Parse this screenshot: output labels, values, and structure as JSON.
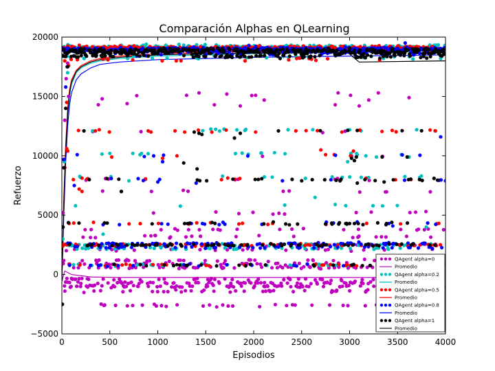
{
  "chart_data": {
    "type": "scatter",
    "title": "Comparación Alphas en QLearning",
    "xlabel": "Episodios",
    "ylabel": "Refuerzo",
    "xlim": [
      0,
      4000
    ],
    "ylim": [
      -5000,
      20000
    ],
    "x_ticks": [
      "0",
      "500",
      "1000",
      "1500",
      "2000",
      "2500",
      "3000",
      "3500",
      "4000"
    ],
    "y_ticks": [
      "−5000",
      "0",
      "5000",
      "10000",
      "15000",
      "20000"
    ],
    "grid": false,
    "legend_position": "bottom-right",
    "series": [
      {
        "name": "QAgent alpha=0",
        "avg_name": "Promedio",
        "color": "#bf00bf",
        "avg_color": "#bf00bf",
        "levels": [
          -2600,
          -1400,
          -1000,
          -700,
          -400,
          600,
          900,
          1200,
          2100,
          2500,
          3200,
          3800,
          5200,
          7000,
          8000,
          10000,
          12000,
          15100
        ],
        "weights": [
          22,
          35,
          60,
          60,
          35,
          30,
          30,
          25,
          16,
          14,
          12,
          10,
          6,
          5,
          4,
          2,
          2,
          2
        ],
        "sparse_points": [
          [
            1300,
            15100
          ],
          [
            1430,
            15300
          ],
          [
            1720,
            15200
          ],
          [
            2020,
            15100
          ],
          [
            2880,
            15300
          ],
          [
            3010,
            15100
          ],
          [
            3620,
            14900
          ],
          [
            420,
            14800
          ],
          [
            380,
            14300
          ],
          [
            680,
            14400
          ],
          [
            1590,
            14300
          ],
          [
            1860,
            14200
          ],
          [
            2110,
            14700
          ],
          [
            2850,
            14300
          ],
          [
            3100,
            14200
          ],
          [
            3200,
            14700
          ],
          [
            3300,
            15300
          ]
        ],
        "early": [
          [
            5,
            -2500
          ],
          [
            12,
            5200
          ],
          [
            20,
            9000
          ],
          [
            30,
            13000
          ],
          [
            45,
            16500
          ],
          [
            60,
            17800
          ],
          [
            70,
            15000
          ]
        ],
        "avg_x": [
          0,
          30,
          100,
          300,
          600,
          1000,
          1500,
          2000,
          3000,
          4000
        ],
        "avg_y": [
          -600,
          300,
          0,
          -200,
          -250,
          -250,
          -250,
          -250,
          -250,
          -250
        ]
      },
      {
        "name": "QAgent alpha=0.2",
        "avg_name": "Promedio",
        "color": "#00bfbf",
        "avg_color": "#00bfbf",
        "levels": [
          19000,
          19200,
          18300,
          12200,
          10200,
          8200,
          5800,
          2500,
          2200,
          800
        ],
        "weights": [
          50,
          35,
          6,
          3,
          4,
          3,
          2,
          14,
          10,
          6
        ],
        "sparse_points": [
          [
            320,
            12100
          ],
          [
            3000,
            12200
          ],
          [
            3120,
            12100
          ],
          [
            3700,
            12200
          ],
          [
            500,
            10200
          ],
          [
            740,
            10200
          ],
          [
            830,
            10200
          ],
          [
            3080,
            10100
          ],
          [
            3170,
            10000
          ],
          [
            3280,
            9900
          ],
          [
            3540,
            10100
          ],
          [
            3620,
            9900
          ],
          [
            2980,
            9500
          ],
          [
            700,
            7900
          ],
          [
            2540,
            8100
          ],
          [
            2640,
            6500
          ],
          [
            2850,
            5900
          ],
          [
            2960,
            5800
          ],
          [
            3800,
            4000
          ],
          [
            430,
            3400
          ],
          [
            3950,
            18200
          ]
        ],
        "early": [
          [
            10,
            3000
          ],
          [
            25,
            9500
          ],
          [
            40,
            14000
          ],
          [
            60,
            17000
          ]
        ],
        "avg_x": [
          0,
          20,
          40,
          60,
          80,
          100,
          150,
          200,
          300,
          400,
          600,
          1000,
          1500,
          2000,
          3000,
          4000
        ],
        "avg_y": [
          -500,
          5500,
          10000,
          13200,
          15000,
          16000,
          17000,
          17400,
          17800,
          18000,
          18200,
          18400,
          18500,
          18600,
          18700,
          18800
        ]
      },
      {
        "name": "QAgent alpha=0.5",
        "avg_name": "Promedio",
        "color": "#ff0000",
        "avg_color": "#ff0000",
        "levels": [
          19100,
          18900,
          18100,
          12100,
          8100,
          4300,
          2500,
          800
        ],
        "weights": [
          50,
          30,
          4,
          3,
          3,
          3,
          14,
          6
        ],
        "sparse_points": [
          [
            350,
            12100
          ],
          [
            390,
            12200
          ],
          [
            900,
            12100
          ],
          [
            930,
            12000
          ],
          [
            1180,
            12100
          ],
          [
            1280,
            12000
          ],
          [
            2020,
            12000
          ],
          [
            2440,
            12100
          ],
          [
            2920,
            12000
          ],
          [
            50,
            10600
          ],
          [
            60,
            10400
          ],
          [
            520,
            9900
          ],
          [
            1050,
            9800
          ],
          [
            1200,
            10000
          ],
          [
            2700,
            10500
          ],
          [
            2750,
            10100
          ],
          [
            2840,
            10100
          ],
          [
            3010,
            10000
          ],
          [
            3040,
            10400
          ],
          [
            3640,
            8000
          ],
          [
            120,
            8000
          ],
          [
            180,
            7200
          ],
          [
            210,
            7000
          ],
          [
            330,
            4400
          ],
          [
            1910,
            18000
          ],
          [
            30,
            18000
          ]
        ],
        "early": [
          [
            10,
            2400
          ],
          [
            30,
            9000
          ],
          [
            50,
            14500
          ],
          [
            70,
            17600
          ]
        ],
        "avg_x": [
          0,
          20,
          40,
          60,
          80,
          100,
          150,
          200,
          300,
          400,
          600,
          1000,
          1500,
          2000,
          3000,
          4000
        ],
        "avg_y": [
          -500,
          6500,
          11000,
          14000,
          15600,
          16400,
          17200,
          17600,
          18000,
          18200,
          18400,
          18600,
          18700,
          18800,
          18850,
          18900
        ]
      },
      {
        "name": "QAgent alpha=0.8",
        "avg_name": "Promedio",
        "color": "#0000ff",
        "avg_color": "#0000ff",
        "levels": [
          19000,
          18800,
          18600,
          10000,
          8000,
          4300,
          2600,
          2300,
          800
        ],
        "weights": [
          55,
          30,
          8,
          2,
          3,
          4,
          16,
          12,
          6
        ],
        "sparse_points": [
          [
            160,
            10100
          ],
          [
            1050,
            9500
          ],
          [
            3950,
            11600
          ],
          [
            1000,
            7800
          ],
          [
            1400,
            7700
          ],
          [
            2300,
            7900
          ],
          [
            4000,
            7900
          ],
          [
            130,
            7500
          ],
          [
            430,
            4200
          ],
          [
            600,
            4200
          ],
          [
            1350,
            4300
          ],
          [
            1640,
            4200
          ],
          [
            1680,
            4400
          ],
          [
            3410,
            4300
          ],
          [
            3450,
            4100
          ],
          [
            1950,
            19300
          ],
          [
            2020,
            19200
          ],
          [
            3580,
            19500
          ]
        ],
        "early": [
          [
            8,
            4000
          ],
          [
            20,
            9700
          ],
          [
            40,
            15800
          ],
          [
            55,
            17500
          ]
        ],
        "avg_x": [
          0,
          20,
          40,
          60,
          80,
          100,
          150,
          200,
          300,
          400,
          600,
          1000,
          1500,
          2000,
          3000,
          4000
        ],
        "avg_y": [
          -500,
          5000,
          9500,
          12500,
          14300,
          15300,
          16400,
          16900,
          17400,
          17700,
          17900,
          18100,
          18200,
          18300,
          18400,
          18500
        ]
      },
      {
        "name": "QAgent alpha=1",
        "avg_name": "Promedio",
        "color": "#000000",
        "avg_color": "#000000",
        "levels": [
          18900,
          18700,
          18400,
          12100,
          8000,
          4300,
          2500,
          800
        ],
        "weights": [
          45,
          35,
          25,
          3,
          5,
          6,
          16,
          6
        ],
        "sparse_points": [
          [
            230,
            12100
          ],
          [
            1380,
            12000
          ],
          [
            1430,
            11900
          ],
          [
            1460,
            11800
          ],
          [
            1800,
            11500
          ],
          [
            1860,
            11900
          ],
          [
            3020,
            9800
          ],
          [
            3050,
            9600
          ],
          [
            3070,
            9900
          ],
          [
            3340,
            9900
          ],
          [
            3600,
            9900
          ],
          [
            1410,
            8900
          ],
          [
            1270,
            9400
          ],
          [
            620,
            7000
          ],
          [
            1510,
            7900
          ],
          [
            2500,
            7900
          ],
          [
            2900,
            7900
          ],
          [
            3080,
            7700
          ],
          [
            3160,
            8000
          ],
          [
            3360,
            7800
          ],
          [
            3880,
            8100
          ],
          [
            2960,
            4300
          ],
          [
            3000,
            4300
          ],
          [
            3050,
            4300
          ],
          [
            3090,
            4300
          ],
          [
            3140,
            4200
          ],
          [
            3380,
            4200
          ],
          [
            3440,
            4400
          ]
        ],
        "early": [
          [
            5,
            -2500
          ],
          [
            12,
            4000
          ],
          [
            25,
            9000
          ],
          [
            40,
            14000
          ],
          [
            60,
            17500
          ]
        ],
        "avg_x": [
          0,
          20,
          40,
          60,
          80,
          100,
          150,
          200,
          300,
          400,
          600,
          1000,
          1500,
          2000,
          2980,
          3100,
          4000
        ],
        "avg_y": [
          -500,
          6000,
          10500,
          13600,
          15300,
          16200,
          17100,
          17500,
          17900,
          18100,
          18300,
          18500,
          18600,
          18650,
          18700,
          17900,
          18000
        ]
      }
    ]
  }
}
